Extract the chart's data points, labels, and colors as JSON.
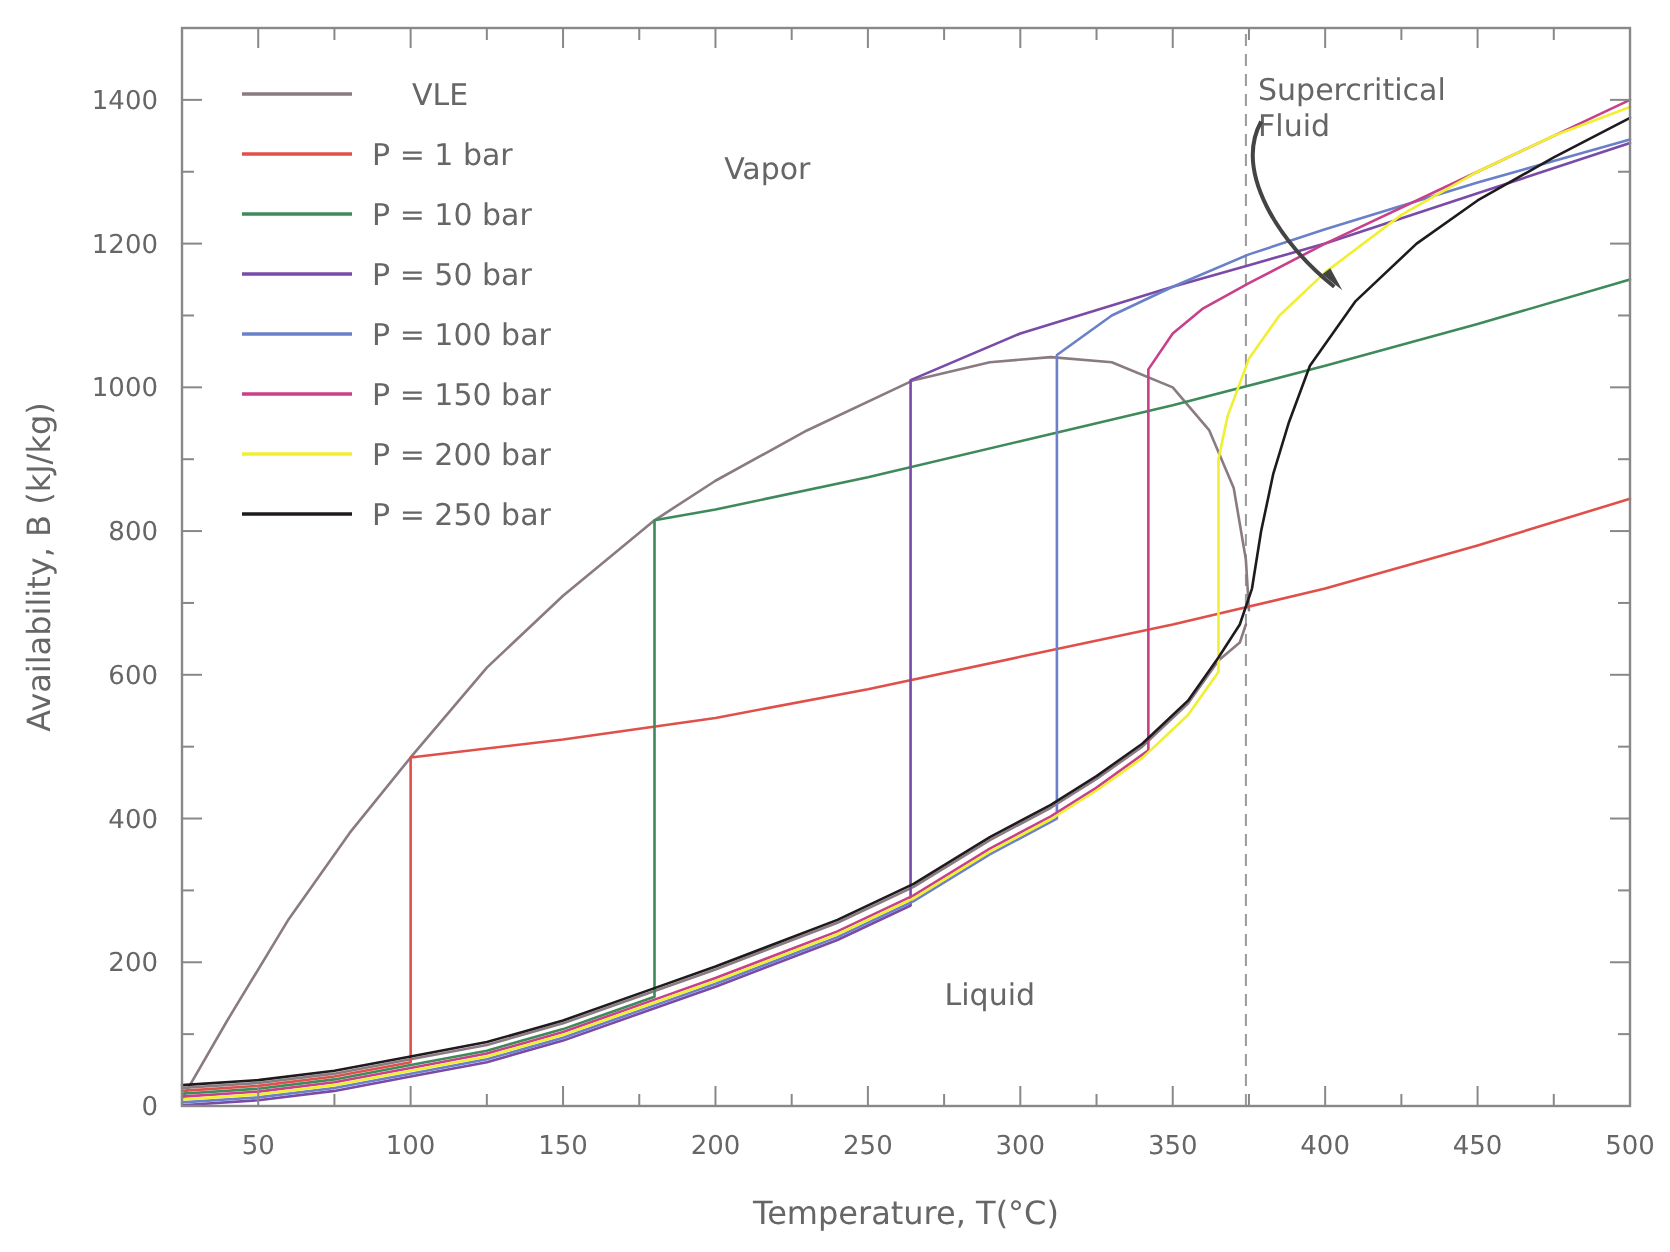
{
  "chart_data": {
    "type": "line",
    "xlabel": "Temperature, T(°C)",
    "ylabel": "Availability, B (kJ/kg)",
    "xlim": [
      25,
      500
    ],
    "ylim": [
      0,
      1500
    ],
    "xticks": [
      50,
      {
        "value": 75,
        "label": null
      },
      100,
      {
        "value": 125,
        "label": null
      },
      150,
      {
        "value": 175,
        "label": null
      },
      200,
      {
        "value": 225,
        "label": null
      },
      250,
      {
        "value": 275,
        "label": null
      },
      300,
      {
        "value": 325,
        "label": null
      },
      350,
      {
        "value": 375,
        "label": null
      },
      400,
      {
        "value": 425,
        "label": null
      },
      450,
      {
        "value": 475,
        "label": null
      },
      500
    ],
    "yticks": [
      0,
      {
        "value": 100,
        "label": null
      },
      200,
      {
        "value": 300,
        "label": null
      },
      400,
      {
        "value": 500,
        "label": null
      },
      600,
      {
        "value": 700,
        "label": null
      },
      800,
      {
        "value": 900,
        "label": null
      },
      1000,
      {
        "value": 1100,
        "label": null
      },
      1200,
      {
        "value": 1300,
        "label": null
      },
      1400
    ],
    "grid": false,
    "legend": "top left",
    "marker": "none",
    "line_style": "solid",
    "series": [
      {
        "name": "VLE",
        "color": "#8a7a82",
        "x": [
          25,
          40,
          60,
          80,
          100,
          125,
          150,
          180,
          200,
          230,
          265,
          290,
          310,
          330,
          350,
          362,
          370,
          374,
          375
        ],
        "values": [
          10,
          120,
          260,
          380,
          485,
          610,
          710,
          815,
          870,
          940,
          1010,
          1035,
          1042,
          1035,
          1000,
          940,
          860,
          760,
          690
        ]
      },
      {
        "color": "#8a7a82",
        "x": [
          25,
          50,
          75,
          100,
          125,
          150,
          180,
          200,
          240,
          265,
          290,
          310,
          325,
          340,
          355,
          365,
          372,
          374
        ],
        "values": [
          25,
          32,
          45,
          65,
          85,
          115,
          160,
          190,
          255,
          305,
          370,
          415,
          455,
          500,
          560,
          620,
          645,
          670
        ]
      },
      {
        "name": "P = 1 bar",
        "color": "#e0504a",
        "x": [
          25,
          50,
          75,
          100,
          100,
          150,
          200,
          250,
          300,
          350,
          400,
          450,
          500
        ],
        "values": [
          21,
          28,
          41,
          61,
          485,
          510,
          540,
          580,
          625,
          670,
          720,
          780,
          845
        ]
      },
      {
        "name": "P = 10 bar",
        "color": "#3e8a5a",
        "x": [
          25,
          50,
          75,
          100,
          125,
          150,
          180,
          180,
          200,
          250,
          300,
          350,
          400,
          450,
          500
        ],
        "values": [
          17,
          24,
          37,
          57,
          77,
          107,
          152,
          815,
          830,
          875,
          925,
          975,
          1030,
          1088,
          1150
        ]
      },
      {
        "name": "P = 50 bar",
        "color": "#7a4aa8",
        "x": [
          25,
          50,
          75,
          100,
          125,
          150,
          180,
          200,
          240,
          264,
          264,
          300,
          350,
          375,
          400,
          450,
          500
        ],
        "values": [
          1,
          8,
          21,
          41,
          61,
          91,
          136,
          166,
          231,
          279,
          1010,
          1075,
          1140,
          1170,
          1200,
          1270,
          1340
        ]
      },
      {
        "name": "P = 100 bar",
        "color": "#6a80c8",
        "x": [
          25,
          50,
          75,
          100,
          125,
          150,
          180,
          200,
          240,
          265,
          290,
          312,
          312,
          330,
          350,
          375,
          400,
          450,
          500
        ],
        "values": [
          5,
          12,
          25,
          45,
          65,
          95,
          140,
          170,
          235,
          285,
          350,
          400,
          1045,
          1100,
          1140,
          1185,
          1220,
          1285,
          1345
        ]
      },
      {
        "name": "P = 150 bar",
        "color": "#c8408a",
        "x": [
          25,
          50,
          75,
          100,
          125,
          150,
          180,
          200,
          240,
          265,
          290,
          310,
          325,
          342,
          342,
          350,
          360,
          375,
          400,
          450,
          500
        ],
        "values": [
          13,
          20,
          33,
          53,
          73,
          103,
          148,
          178,
          243,
          293,
          358,
          403,
          443,
          495,
          1025,
          1075,
          1110,
          1145,
          1200,
          1300,
          1400
        ]
      },
      {
        "name": "P = 200 bar",
        "color": "#f0f030",
        "x": [
          25,
          50,
          75,
          100,
          125,
          150,
          180,
          200,
          240,
          265,
          290,
          310,
          325,
          340,
          355,
          365,
          365,
          368,
          375,
          385,
          400,
          425,
          450,
          475,
          500
        ],
        "values": [
          9,
          16,
          29,
          49,
          69,
          99,
          144,
          174,
          239,
          289,
          354,
          399,
          439,
          484,
          544,
          604,
          900,
          960,
          1040,
          1100,
          1160,
          1240,
          1300,
          1350,
          1390
        ]
      },
      {
        "name": "P = 250 bar",
        "color": "#1e1a1e",
        "x": [
          25,
          50,
          75,
          100,
          125,
          150,
          180,
          200,
          240,
          265,
          290,
          310,
          325,
          340,
          355,
          365,
          372,
          376,
          379,
          383,
          388,
          395,
          410,
          430,
          450,
          475,
          500
        ],
        "values": [
          29,
          36,
          49,
          69,
          89,
          119,
          164,
          194,
          259,
          309,
          374,
          419,
          459,
          504,
          564,
          624,
          670,
          720,
          800,
          880,
          950,
          1030,
          1120,
          1200,
          1260,
          1320,
          1375
        ]
      }
    ],
    "ref_lines": [
      {
        "axis": "x",
        "value": 374,
        "color": "#999999",
        "line_style": "dashed"
      }
    ],
    "annotations": [
      "Vapor",
      "Liquid",
      "Supercritical Fluid"
    ]
  }
}
